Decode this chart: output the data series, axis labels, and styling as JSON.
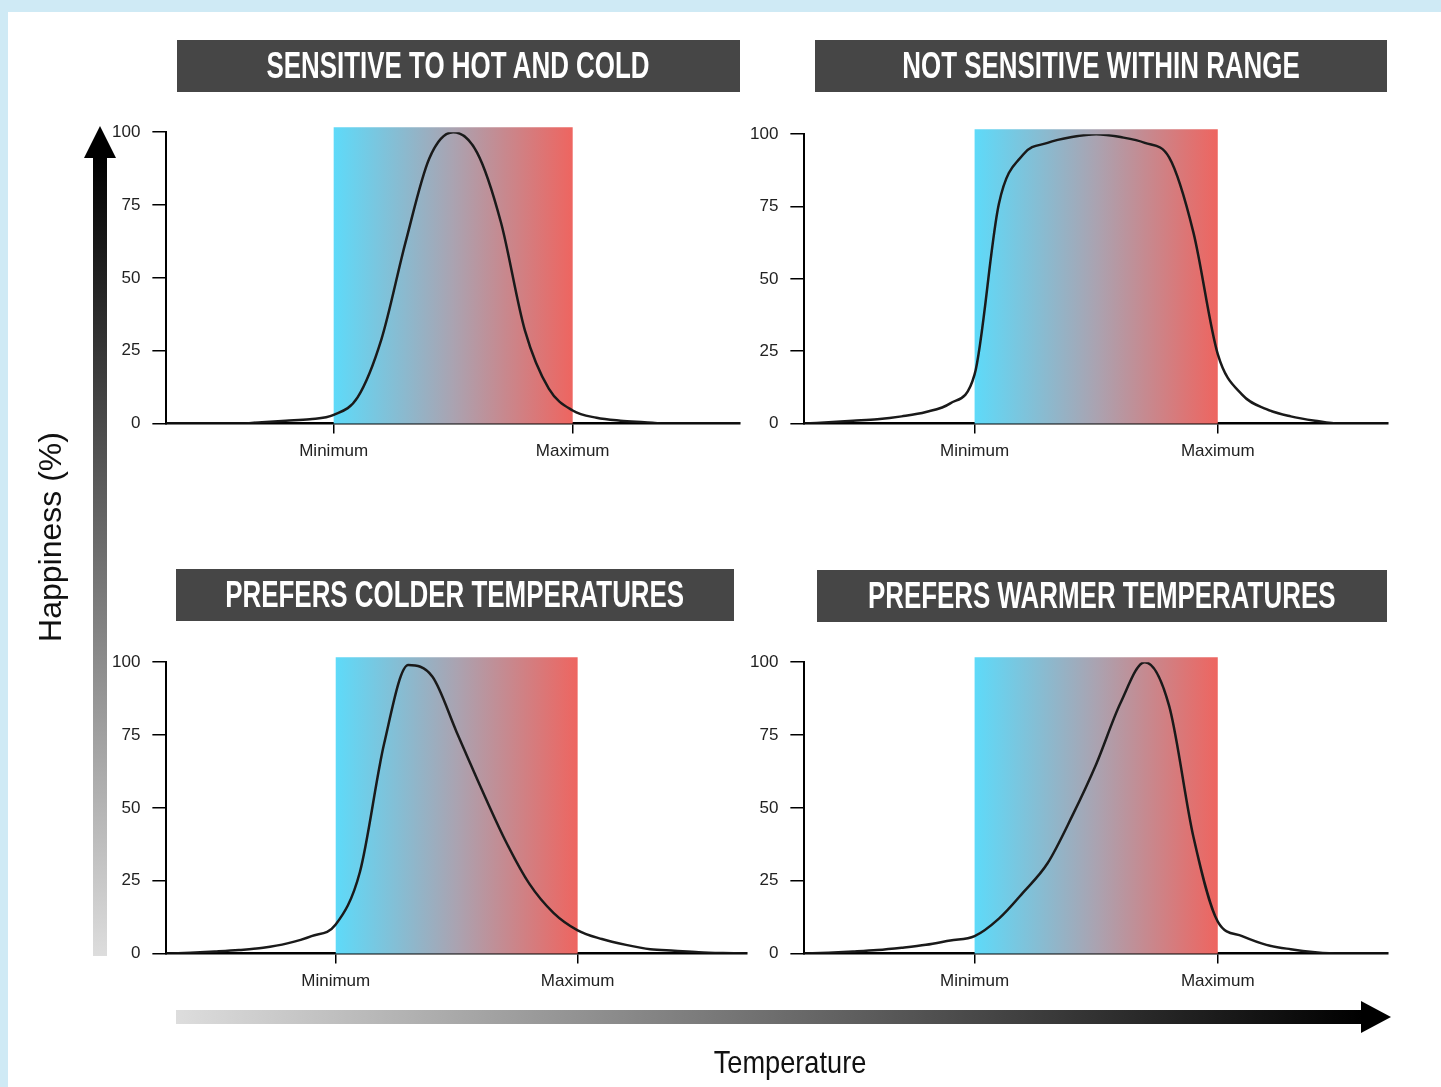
{
  "chart_data": [
    {
      "type": "line",
      "title": "SENSITIVE TO HOT AND COLD",
      "ylabel": "Happiness (%)",
      "marker": "none",
      "categories": [
        null,
        null,
        null,
        null,
        null,
        null,
        null,
        "Minimum",
        null,
        null,
        null,
        null,
        null,
        null,
        null,
        null,
        null,
        "Maximum",
        null,
        null,
        null,
        null,
        null,
        null,
        null
      ],
      "series": [
        {
          "color": "#1a1a1a",
          "values": [
            0,
            0,
            0,
            0,
            0.5,
            1,
            1.5,
            3,
            9,
            29,
            62,
            91,
            100,
            93,
            69,
            32,
            12,
            4.5,
            2,
            1,
            0.5,
            0,
            0,
            0,
            0
          ]
        }
      ],
      "ylim": [
        0,
        100
      ],
      "yticks": [
        0,
        25,
        50,
        75,
        100
      ],
      "bands": [
        {
          "axis": "x",
          "from": "Minimum",
          "to": "Maximum"
        }
      ]
    },
    {
      "type": "line",
      "title": "NOT SENSITIVE WITHIN RANGE",
      "marker": "none",
      "categories": [
        null,
        null,
        null,
        null,
        null,
        null,
        null,
        "Minimum",
        null,
        null,
        null,
        null,
        null,
        null,
        null,
        null,
        null,
        "Maximum",
        null,
        null,
        null,
        null,
        null,
        null,
        null
      ],
      "series": [
        {
          "color": "#1a1a1a",
          "values": [
            0,
            0.5,
            1,
            1.5,
            2.5,
            4,
            7,
            17,
            76,
            93,
            97,
            99,
            100,
            99,
            97,
            92,
            66,
            24,
            10,
            5,
            2.5,
            1,
            0,
            0,
            0
          ]
        }
      ],
      "ylim": [
        0,
        100
      ],
      "yticks": [
        0,
        25,
        50,
        75,
        100
      ],
      "bands": [
        {
          "axis": "x",
          "from": "Minimum",
          "to": "Maximum"
        }
      ]
    },
    {
      "type": "line",
      "title": "PREFERS COLDER TEMPERATURES",
      "xlabel": "Temperature",
      "marker": "none",
      "categories": [
        null,
        null,
        null,
        null,
        null,
        null,
        null,
        "Minimum",
        null,
        null,
        null,
        null,
        null,
        null,
        null,
        null,
        null,
        "Maximum",
        null,
        null,
        null,
        null,
        null,
        null,
        null
      ],
      "series": [
        {
          "color": "#1a1a1a",
          "values": [
            0,
            0.3,
            0.7,
            1.2,
            2,
            3.5,
            6,
            10,
            28,
            72,
            99,
            95,
            76,
            57,
            39,
            24,
            14,
            8,
            5,
            3,
            1.5,
            1,
            0.5,
            0.2,
            0
          ]
        }
      ],
      "ylim": [
        0,
        100
      ],
      "yticks": [
        0,
        25,
        50,
        75,
        100
      ],
      "bands": [
        {
          "axis": "x",
          "from": "Minimum",
          "to": "Maximum"
        }
      ]
    },
    {
      "type": "line",
      "title": "PREFERS WARMER TEMPERATURES",
      "marker": "none",
      "categories": [
        null,
        null,
        null,
        null,
        null,
        null,
        null,
        "Minimum",
        null,
        null,
        null,
        null,
        null,
        null,
        null,
        null,
        null,
        "Maximum",
        null,
        null,
        null,
        null,
        null,
        null,
        null
      ],
      "series": [
        {
          "color": "#1a1a1a",
          "values": [
            0,
            0.3,
            0.7,
            1.2,
            2,
            3,
            4.5,
            6,
            12,
            21,
            31,
            47,
            65,
            86,
            100,
            85,
            40,
            11,
            6,
            3,
            1.5,
            0.5,
            0,
            0,
            0
          ]
        }
      ],
      "ylim": [
        0,
        100
      ],
      "yticks": [
        0,
        25,
        50,
        75,
        100
      ],
      "bands": [
        {
          "axis": "x",
          "from": "Minimum",
          "to": "Maximum"
        }
      ]
    }
  ]
}
